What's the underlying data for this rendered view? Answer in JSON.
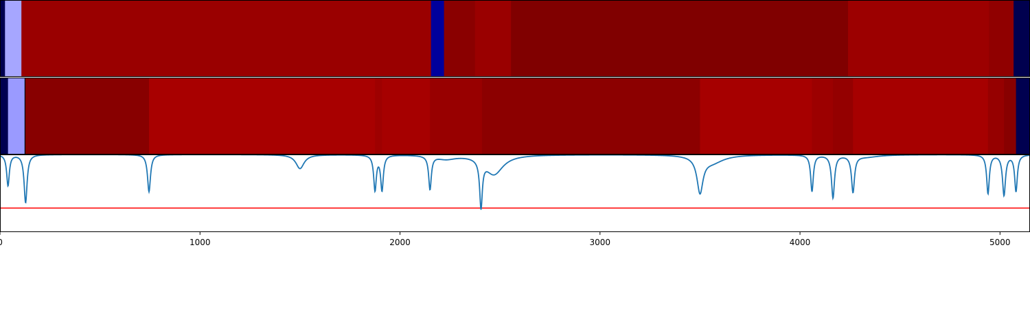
{
  "chart_data": [
    {
      "type": "heatmap",
      "xlim": [
        0,
        5150
      ],
      "segments": [
        {
          "x0": 0,
          "x1": 25,
          "color": "#00004f"
        },
        {
          "x0": 25,
          "x1": 107,
          "color": "#a6a6ff"
        },
        {
          "x0": 107,
          "x1": 2155,
          "color": "#9a0000"
        },
        {
          "x0": 2155,
          "x1": 2220,
          "color": "#00009c"
        },
        {
          "x0": 2220,
          "x1": 2375,
          "color": "#8a0000"
        },
        {
          "x0": 2375,
          "x1": 2555,
          "color": "#9a0000"
        },
        {
          "x0": 2555,
          "x1": 4240,
          "color": "#800000"
        },
        {
          "x0": 4240,
          "x1": 4945,
          "color": "#9c0000"
        },
        {
          "x0": 4945,
          "x1": 5068,
          "color": "#900000"
        },
        {
          "x0": 5068,
          "x1": 5150,
          "color": "#00004f"
        }
      ]
    },
    {
      "type": "heatmap",
      "xlim": [
        0,
        5150
      ],
      "segments": [
        {
          "x0": 0,
          "x1": 40,
          "color": "#000050"
        },
        {
          "x0": 40,
          "x1": 125,
          "color": "#9a9aff"
        },
        {
          "x0": 125,
          "x1": 745,
          "color": "#880000"
        },
        {
          "x0": 745,
          "x1": 1875,
          "color": "#a80000"
        },
        {
          "x0": 1875,
          "x1": 1910,
          "color": "#9e0000"
        },
        {
          "x0": 1910,
          "x1": 2150,
          "color": "#a60000"
        },
        {
          "x0": 2150,
          "x1": 2410,
          "color": "#980000"
        },
        {
          "x0": 2410,
          "x1": 3500,
          "color": "#8c0000"
        },
        {
          "x0": 3500,
          "x1": 4060,
          "color": "#a60000"
        },
        {
          "x0": 4060,
          "x1": 4165,
          "color": "#9c0000"
        },
        {
          "x0": 4165,
          "x1": 4265,
          "color": "#940000"
        },
        {
          "x0": 4265,
          "x1": 4940,
          "color": "#a60000"
        },
        {
          "x0": 4940,
          "x1": 5020,
          "color": "#960000"
        },
        {
          "x0": 5020,
          "x1": 5080,
          "color": "#880000"
        },
        {
          "x0": 5080,
          "x1": 5150,
          "color": "#000050"
        }
      ]
    },
    {
      "type": "line",
      "xlim": [
        0,
        5150
      ],
      "ylim": [
        0,
        1
      ],
      "xticks": [
        "0",
        "1000",
        "2000",
        "3000",
        "4000",
        "5000"
      ],
      "xtick_values": [
        0,
        1000,
        2000,
        3000,
        4000,
        5000
      ],
      "line_color": "#1f77b4",
      "threshold": {
        "y": 0.31,
        "color": "#ff0000"
      },
      "baseline": 1.0,
      "dips": [
        {
          "x": 40,
          "depth": 0.4,
          "width": 8
        },
        {
          "x": 128,
          "depth": 0.62,
          "width": 9
        },
        {
          "x": 745,
          "depth": 0.48,
          "width": 9
        },
        {
          "x": 1500,
          "depth": 0.18,
          "width": 25
        },
        {
          "x": 1875,
          "depth": 0.45,
          "width": 8
        },
        {
          "x": 1910,
          "depth": 0.45,
          "width": 8
        },
        {
          "x": 2150,
          "depth": 0.43,
          "width": 8
        },
        {
          "x": 2230,
          "depth": 0.05,
          "width": 60
        },
        {
          "x": 2405,
          "depth": 0.6,
          "width": 8
        },
        {
          "x": 2470,
          "depth": 0.25,
          "width": 55
        },
        {
          "x": 3500,
          "depth": 0.45,
          "width": 18
        },
        {
          "x": 3560,
          "depth": 0.1,
          "width": 70
        },
        {
          "x": 4060,
          "depth": 0.47,
          "width": 8
        },
        {
          "x": 4165,
          "depth": 0.55,
          "width": 9
        },
        {
          "x": 4265,
          "depth": 0.47,
          "width": 9
        },
        {
          "x": 4330,
          "depth": 0.03,
          "width": 80
        },
        {
          "x": 4940,
          "depth": 0.5,
          "width": 8
        },
        {
          "x": 5020,
          "depth": 0.52,
          "width": 9
        },
        {
          "x": 5080,
          "depth": 0.47,
          "width": 8
        }
      ]
    }
  ]
}
